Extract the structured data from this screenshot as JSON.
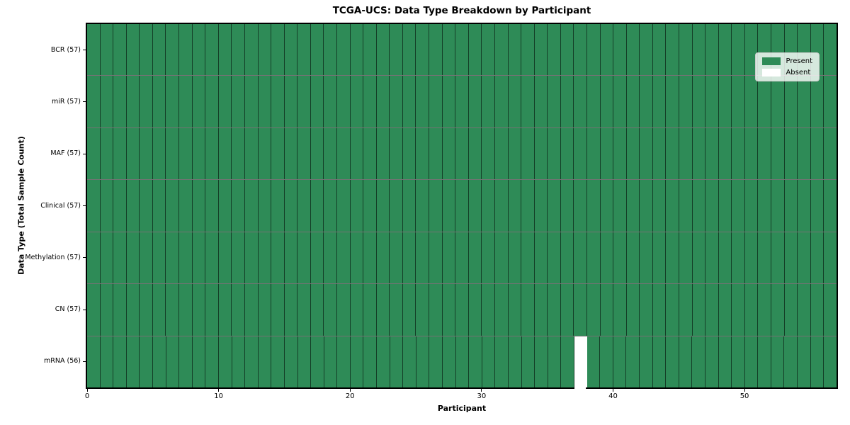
{
  "chart_data": {
    "type": "heatmap",
    "title": "TCGA-UCS: Data Type Breakdown by Participant",
    "xlabel": "Participant",
    "ylabel": "Data Type (Total Sample Count)",
    "n_participants": 57,
    "x_ticks": [
      0,
      10,
      20,
      30,
      40,
      50
    ],
    "rows": [
      {
        "label": "BCR (57)",
        "data_type": "BCR",
        "total_samples": 57,
        "absent_participants": []
      },
      {
        "label": "miR (57)",
        "data_type": "miR",
        "total_samples": 57,
        "absent_participants": []
      },
      {
        "label": "MAF (57)",
        "data_type": "MAF",
        "total_samples": 57,
        "absent_participants": []
      },
      {
        "label": "Clinical (57)",
        "data_type": "Clinical",
        "total_samples": 57,
        "absent_participants": []
      },
      {
        "label": "Methylation (57)",
        "data_type": "Methylation",
        "total_samples": 57,
        "absent_participants": []
      },
      {
        "label": "CN (57)",
        "data_type": "CN",
        "total_samples": 57,
        "absent_participants": []
      },
      {
        "label": "mRNA (56)",
        "data_type": "mRNA",
        "total_samples": 56,
        "absent_participants": [
          37
        ]
      }
    ],
    "legend": {
      "position": "upper right",
      "entries": [
        {
          "label": "Present",
          "color": "#2e8b57"
        },
        {
          "label": "Absent",
          "color": "#ffffff"
        }
      ]
    },
    "colors": {
      "present": "#2e8b57",
      "absent": "#ffffff",
      "cell_edge": "rgba(0,0,0,0.55)",
      "spine": "#000000"
    },
    "grid": false
  }
}
